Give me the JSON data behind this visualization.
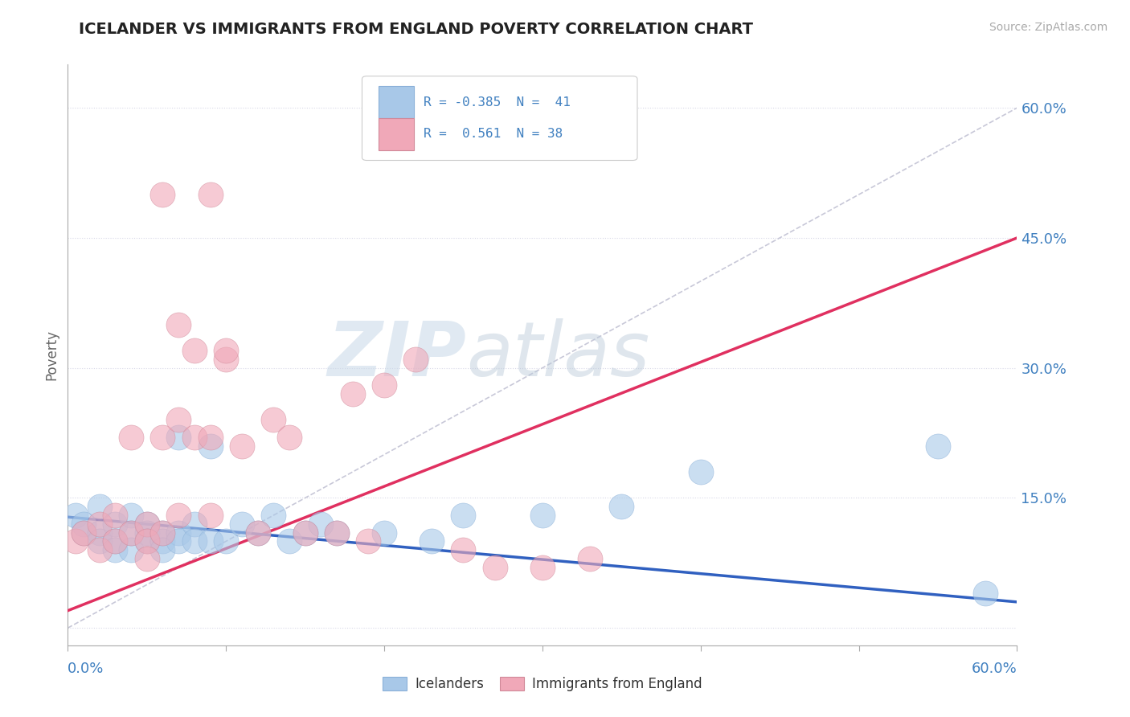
{
  "title": "ICELANDER VS IMMIGRANTS FROM ENGLAND POVERTY CORRELATION CHART",
  "source_text": "Source: ZipAtlas.com",
  "ylabel": "Poverty",
  "ytick_values": [
    0.0,
    0.15,
    0.3,
    0.45,
    0.6
  ],
  "xlim": [
    0.0,
    0.6
  ],
  "ylim": [
    -0.02,
    0.65
  ],
  "color_blue": "#a8c8e8",
  "color_pink": "#f0a8b8",
  "color_blue_line": "#3060c0",
  "color_pink_line": "#e03060",
  "color_diag_line": "#c8c8d8",
  "color_text_blue": "#4080c0",
  "color_grid": "#d8d8e8",
  "watermark_zip": "ZIP",
  "watermark_atlas": "atlas",
  "blue_scatter_x": [
    0.005,
    0.01,
    0.01,
    0.02,
    0.02,
    0.02,
    0.03,
    0.03,
    0.03,
    0.04,
    0.04,
    0.04,
    0.05,
    0.05,
    0.05,
    0.06,
    0.06,
    0.06,
    0.07,
    0.07,
    0.07,
    0.08,
    0.08,
    0.09,
    0.09,
    0.1,
    0.11,
    0.12,
    0.13,
    0.14,
    0.15,
    0.16,
    0.17,
    0.2,
    0.23,
    0.25,
    0.3,
    0.35,
    0.4,
    0.55,
    0.58
  ],
  "blue_scatter_y": [
    0.13,
    0.12,
    0.11,
    0.14,
    0.11,
    0.1,
    0.12,
    0.1,
    0.09,
    0.13,
    0.11,
    0.09,
    0.12,
    0.11,
    0.1,
    0.11,
    0.1,
    0.09,
    0.22,
    0.11,
    0.1,
    0.12,
    0.1,
    0.21,
    0.1,
    0.1,
    0.12,
    0.11,
    0.13,
    0.1,
    0.11,
    0.12,
    0.11,
    0.11,
    0.1,
    0.13,
    0.13,
    0.14,
    0.18,
    0.21,
    0.04
  ],
  "pink_scatter_x": [
    0.005,
    0.01,
    0.02,
    0.02,
    0.03,
    0.03,
    0.04,
    0.04,
    0.05,
    0.05,
    0.06,
    0.06,
    0.07,
    0.07,
    0.08,
    0.09,
    0.09,
    0.1,
    0.11,
    0.12,
    0.13,
    0.14,
    0.15,
    0.17,
    0.18,
    0.19,
    0.2,
    0.22,
    0.25,
    0.27,
    0.3,
    0.33,
    0.1,
    0.08,
    0.06,
    0.07,
    0.09,
    0.05
  ],
  "pink_scatter_y": [
    0.1,
    0.11,
    0.12,
    0.09,
    0.13,
    0.1,
    0.22,
    0.11,
    0.12,
    0.1,
    0.22,
    0.11,
    0.24,
    0.13,
    0.22,
    0.22,
    0.13,
    0.31,
    0.21,
    0.11,
    0.24,
    0.22,
    0.11,
    0.11,
    0.27,
    0.1,
    0.28,
    0.31,
    0.09,
    0.07,
    0.07,
    0.08,
    0.32,
    0.32,
    0.5,
    0.35,
    0.5,
    0.08
  ],
  "blue_line_x": [
    0.0,
    0.6
  ],
  "blue_line_y": [
    0.128,
    0.03
  ],
  "pink_line_x": [
    0.0,
    0.6
  ],
  "pink_line_y": [
    0.02,
    0.45
  ],
  "diag_line_x": [
    0.0,
    0.6
  ],
  "diag_line_y": [
    0.0,
    0.6
  ]
}
